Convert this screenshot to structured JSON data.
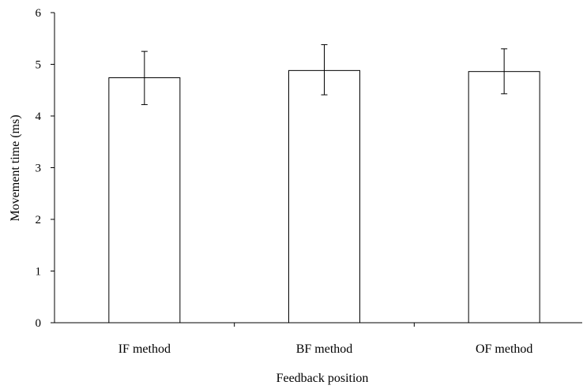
{
  "chart_data": {
    "type": "bar",
    "categories": [
      "IF method",
      "BF method",
      "OF method"
    ],
    "values": [
      4.74,
      4.88,
      4.86
    ],
    "error": [
      {
        "low": 4.22,
        "high": 5.25
      },
      {
        "low": 4.41,
        "high": 5.38
      },
      {
        "low": 4.43,
        "high": 5.3
      }
    ],
    "title": "",
    "xlabel": "Feedback position",
    "ylabel": "Movement time (ms)",
    "ylim": [
      0,
      6
    ],
    "yticks": [
      0,
      1,
      2,
      3,
      4,
      5,
      6
    ],
    "grid": false,
    "legend": "none",
    "colors": {
      "bar_fill": "#ffffff",
      "bar_stroke": "#000000",
      "axis": "#000000"
    }
  }
}
